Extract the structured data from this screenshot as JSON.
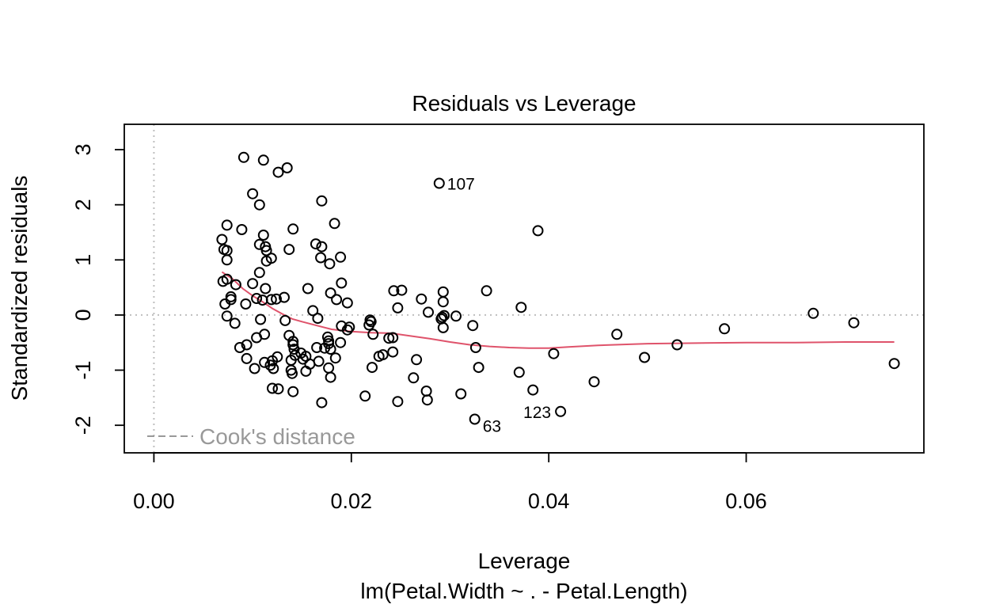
{
  "chart_data": {
    "type": "scatter",
    "title": "Residuals vs Leverage",
    "xlabel": "Leverage",
    "subtitle": "lm(Petal.Width ~ . - Petal.Length)",
    "ylabel": "Standardized residuals",
    "xlim": [
      -0.003,
      0.078
    ],
    "ylim": [
      -2.5,
      3.46
    ],
    "x_ticks": [
      0.0,
      0.02,
      0.04,
      0.06
    ],
    "x_tick_labels": [
      "0.00",
      "0.02",
      "0.04",
      "0.06"
    ],
    "y_ticks": [
      -2,
      -1,
      0,
      1,
      2,
      3
    ],
    "y_tick_labels": [
      "-2",
      "-1",
      "0",
      "1",
      "2",
      "3"
    ],
    "grid": false,
    "reference_lines": {
      "h": 0,
      "v": 0
    },
    "colors": {
      "points": "#000000",
      "smooth": "#DF536B",
      "reference": "#BEBEBE",
      "legend": "#999999"
    },
    "legend": {
      "placement": "bottom-left",
      "entries": [
        {
          "label": "Cook's distance",
          "style": "dashed"
        }
      ]
    },
    "points": [
      [
        0.0069,
        1.37
      ],
      [
        0.0071,
        1.19
      ],
      [
        0.007,
        0.61
      ],
      [
        0.0072,
        0.2
      ],
      [
        0.0074,
        1.63
      ],
      [
        0.0074,
        1.17
      ],
      [
        0.0074,
        1.0
      ],
      [
        0.0074,
        0.65
      ],
      [
        0.0074,
        -0.02
      ],
      [
        0.0078,
        0.28
      ],
      [
        0.0078,
        0.33
      ],
      [
        0.0082,
        -0.15
      ],
      [
        0.0083,
        0.55
      ],
      [
        0.0087,
        -0.59
      ],
      [
        0.0089,
        1.55
      ],
      [
        0.0091,
        2.86
      ],
      [
        0.0093,
        0.2
      ],
      [
        0.0094,
        -0.54
      ],
      [
        0.0094,
        -0.79
      ],
      [
        0.01,
        0.57
      ],
      [
        0.01,
        2.2
      ],
      [
        0.0102,
        -0.97
      ],
      [
        0.0104,
        0.3
      ],
      [
        0.0104,
        -0.41
      ],
      [
        0.0107,
        2.0
      ],
      [
        0.0107,
        0.77
      ],
      [
        0.0107,
        1.28
      ],
      [
        0.0108,
        -0.08
      ],
      [
        0.011,
        0.27
      ],
      [
        0.0111,
        2.81
      ],
      [
        0.0111,
        1.45
      ],
      [
        0.0112,
        -0.35
      ],
      [
        0.0112,
        -0.86
      ],
      [
        0.0113,
        0.48
      ],
      [
        0.0113,
        1.24
      ],
      [
        0.0114,
        1.17
      ],
      [
        0.0114,
        0.98
      ],
      [
        0.0118,
        -0.91
      ],
      [
        0.0119,
        1.03
      ],
      [
        0.0119,
        0.28
      ],
      [
        0.012,
        -1.33
      ],
      [
        0.012,
        -0.83
      ],
      [
        0.0121,
        -0.97
      ],
      [
        0.0124,
        0.29
      ],
      [
        0.0125,
        -0.76
      ],
      [
        0.0126,
        2.59
      ],
      [
        0.0126,
        -1.34
      ],
      [
        0.0132,
        0.32
      ],
      [
        0.0133,
        -0.1
      ],
      [
        0.0135,
        2.67
      ],
      [
        0.0137,
        1.19
      ],
      [
        0.0137,
        -0.37
      ],
      [
        0.0139,
        -0.82
      ],
      [
        0.0139,
        -1.0
      ],
      [
        0.014,
        -1.06
      ],
      [
        0.0141,
        1.56
      ],
      [
        0.0141,
        -0.48
      ],
      [
        0.0141,
        -0.54
      ],
      [
        0.0141,
        -1.39
      ],
      [
        0.0142,
        -0.62
      ],
      [
        0.0143,
        -0.73
      ],
      [
        0.0149,
        -0.69
      ],
      [
        0.0151,
        -0.8
      ],
      [
        0.0154,
        -0.75
      ],
      [
        0.0154,
        -1.02
      ],
      [
        0.0156,
        0.48
      ],
      [
        0.0158,
        -0.89
      ],
      [
        0.0161,
        0.08
      ],
      [
        0.0164,
        1.29
      ],
      [
        0.0165,
        -0.59
      ],
      [
        0.0166,
        -0.06
      ],
      [
        0.0167,
        -0.84
      ],
      [
        0.0169,
        1.04
      ],
      [
        0.017,
        2.07
      ],
      [
        0.017,
        1.24
      ],
      [
        0.017,
        -1.59
      ],
      [
        0.0173,
        -0.6
      ],
      [
        0.0176,
        -0.4
      ],
      [
        0.0177,
        -0.47
      ],
      [
        0.0177,
        -0.52
      ],
      [
        0.0177,
        -0.96
      ],
      [
        0.0178,
        0.93
      ],
      [
        0.0179,
        -0.62
      ],
      [
        0.0179,
        0.4
      ],
      [
        0.0179,
        -1.13
      ],
      [
        0.0183,
        1.66
      ],
      [
        0.0184,
        -0.78
      ],
      [
        0.0185,
        0.28
      ],
      [
        0.0189,
        -0.5
      ],
      [
        0.0189,
        1.05
      ],
      [
        0.019,
        -0.2
      ],
      [
        0.019,
        0.58
      ],
      [
        0.0196,
        -0.27
      ],
      [
        0.0196,
        0.22
      ],
      [
        0.0198,
        -0.22
      ],
      [
        0.0214,
        -1.47
      ],
      [
        0.0218,
        -0.18
      ],
      [
        0.0219,
        -0.09
      ],
      [
        0.022,
        -0.12
      ],
      [
        0.0221,
        -0.95
      ],
      [
        0.0222,
        -0.35
      ],
      [
        0.0228,
        -0.75
      ],
      [
        0.0232,
        -0.72
      ],
      [
        0.0238,
        -0.42
      ],
      [
        0.0242,
        -0.41
      ],
      [
        0.0242,
        -0.67
      ],
      [
        0.0243,
        0.44
      ],
      [
        0.0247,
        0.13
      ],
      [
        0.0247,
        -1.57
      ],
      [
        0.0251,
        0.45
      ],
      [
        0.0263,
        -1.14
      ],
      [
        0.0266,
        -0.81
      ],
      [
        0.0271,
        0.29
      ],
      [
        0.0276,
        -1.38
      ],
      [
        0.0277,
        -1.54
      ],
      [
        0.0278,
        0.05
      ],
      [
        0.0289,
        2.39
      ],
      [
        0.0291,
        -0.07
      ],
      [
        0.0292,
        -0.04
      ],
      [
        0.0293,
        0.42
      ],
      [
        0.0293,
        0.24
      ],
      [
        0.0293,
        -0.23
      ],
      [
        0.0294,
        -0.01
      ],
      [
        0.0306,
        -0.02
      ],
      [
        0.0311,
        -1.43
      ],
      [
        0.0323,
        -0.19
      ],
      [
        0.0325,
        -1.89
      ],
      [
        0.0326,
        -0.59
      ],
      [
        0.0329,
        -0.95
      ],
      [
        0.0337,
        0.44
      ],
      [
        0.037,
        -1.04
      ],
      [
        0.0372,
        0.14
      ],
      [
        0.0384,
        -1.36
      ],
      [
        0.0389,
        1.53
      ],
      [
        0.0405,
        -0.7
      ],
      [
        0.0412,
        -1.75
      ],
      [
        0.0446,
        -1.21
      ],
      [
        0.0469,
        -0.35
      ],
      [
        0.0497,
        -0.77
      ],
      [
        0.053,
        -0.54
      ],
      [
        0.0578,
        -0.25
      ],
      [
        0.0668,
        0.03
      ],
      [
        0.0709,
        -0.14
      ],
      [
        0.075,
        -0.88
      ]
    ],
    "point_labels": [
      {
        "label": "107",
        "x": 0.0289,
        "y": 2.39
      },
      {
        "label": "63",
        "x": 0.0325,
        "y": -1.89
      },
      {
        "label": "123",
        "x": 0.0412,
        "y": -1.75
      }
    ],
    "smooth_line": [
      [
        0.0069,
        0.78
      ],
      [
        0.008,
        0.65
      ],
      [
        0.009,
        0.48
      ],
      [
        0.01,
        0.35
      ],
      [
        0.011,
        0.24
      ],
      [
        0.012,
        0.12
      ],
      [
        0.013,
        0.02
      ],
      [
        0.014,
        -0.07
      ],
      [
        0.015,
        -0.12
      ],
      [
        0.0165,
        -0.19
      ],
      [
        0.018,
        -0.26
      ],
      [
        0.02,
        -0.3
      ],
      [
        0.022,
        -0.32
      ],
      [
        0.024,
        -0.33
      ],
      [
        0.026,
        -0.38
      ],
      [
        0.028,
        -0.43
      ],
      [
        0.03,
        -0.49
      ],
      [
        0.032,
        -0.54
      ],
      [
        0.034,
        -0.57
      ],
      [
        0.036,
        -0.59
      ],
      [
        0.038,
        -0.6
      ],
      [
        0.04,
        -0.6
      ],
      [
        0.042,
        -0.58
      ],
      [
        0.045,
        -0.55
      ],
      [
        0.05,
        -0.52
      ],
      [
        0.055,
        -0.51
      ],
      [
        0.06,
        -0.5
      ],
      [
        0.065,
        -0.5
      ],
      [
        0.07,
        -0.49
      ],
      [
        0.075,
        -0.49
      ]
    ]
  }
}
